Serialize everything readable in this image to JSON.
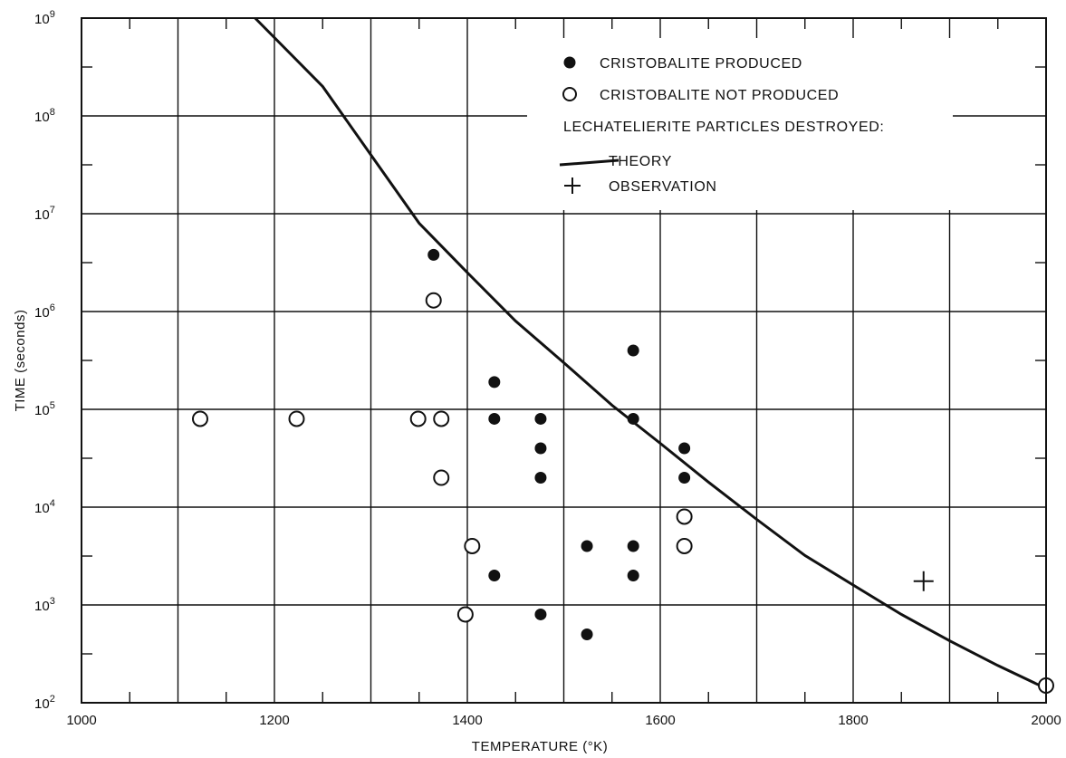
{
  "chart_data": {
    "type": "scatter",
    "xlabel": "TEMPERATURE (°K)",
    "ylabel": "TIME (seconds)",
    "xlim": [
      1000,
      2000
    ],
    "ylim_log10": [
      2,
      9
    ],
    "x_scale": "linear",
    "y_scale": "log",
    "grid": true,
    "x_ticks": [
      1000,
      1200,
      1400,
      1600,
      1800,
      2000
    ],
    "y_ticks": [
      {
        "base": "10",
        "exp": "2"
      },
      {
        "base": "10",
        "exp": "3"
      },
      {
        "base": "10",
        "exp": "4"
      },
      {
        "base": "10",
        "exp": "5"
      },
      {
        "base": "10",
        "exp": "6"
      },
      {
        "base": "10",
        "exp": "7"
      },
      {
        "base": "10",
        "exp": "8"
      },
      {
        "base": "10",
        "exp": "9"
      }
    ],
    "legend": {
      "placement": "top-right",
      "produced": "CRISTOBALITE PRODUCED",
      "not_produced": "CRISTOBALITE NOT PRODUCED",
      "destroyed_header": "LECHATELIERITE PARTICLES DESTROYED:",
      "theory": "THEORY",
      "observation": "OBSERVATION"
    },
    "series": [
      {
        "name": "CRISTOBALITE PRODUCED",
        "marker": "filled-circle",
        "points": [
          {
            "x": 1365,
            "y": 3800000
          },
          {
            "x": 1428,
            "y": 190000
          },
          {
            "x": 1428,
            "y": 80000
          },
          {
            "x": 1428,
            "y": 2000
          },
          {
            "x": 1476,
            "y": 80000
          },
          {
            "x": 1476,
            "y": 40000
          },
          {
            "x": 1476,
            "y": 20000
          },
          {
            "x": 1476,
            "y": 800
          },
          {
            "x": 1524,
            "y": 4000
          },
          {
            "x": 1524,
            "y": 500
          },
          {
            "x": 1572,
            "y": 400000
          },
          {
            "x": 1572,
            "y": 80000
          },
          {
            "x": 1572,
            "y": 4000
          },
          {
            "x": 1572,
            "y": 2000
          },
          {
            "x": 1625,
            "y": 40000
          },
          {
            "x": 1625,
            "y": 20000
          }
        ]
      },
      {
        "name": "CRISTOBALITE NOT PRODUCED",
        "marker": "open-circle",
        "points": [
          {
            "x": 1123,
            "y": 80000
          },
          {
            "x": 1223,
            "y": 80000
          },
          {
            "x": 1349,
            "y": 80000
          },
          {
            "x": 1365,
            "y": 1300000
          },
          {
            "x": 1373,
            "y": 80000
          },
          {
            "x": 1373,
            "y": 20000
          },
          {
            "x": 1398,
            "y": 800
          },
          {
            "x": 1405,
            "y": 4000
          },
          {
            "x": 1625,
            "y": 8000
          },
          {
            "x": 1625,
            "y": 4000
          },
          {
            "x": 2000,
            "y": 150
          }
        ]
      },
      {
        "name": "THEORY",
        "marker": "line",
        "points": [
          {
            "x": 1180,
            "y": 1000000000
          },
          {
            "x": 1250,
            "y": 200000000
          },
          {
            "x": 1300,
            "y": 40000000
          },
          {
            "x": 1350,
            "y": 8000000
          },
          {
            "x": 1400,
            "y": 2500000
          },
          {
            "x": 1450,
            "y": 800000
          },
          {
            "x": 1500,
            "y": 300000
          },
          {
            "x": 1550,
            "y": 110000
          },
          {
            "x": 1600,
            "y": 45000
          },
          {
            "x": 1650,
            "y": 18000
          },
          {
            "x": 1700,
            "y": 7500
          },
          {
            "x": 1750,
            "y": 3200
          },
          {
            "x": 1800,
            "y": 1600
          },
          {
            "x": 1850,
            "y": 800
          },
          {
            "x": 1900,
            "y": 430
          },
          {
            "x": 1950,
            "y": 240
          },
          {
            "x": 2000,
            "y": 140
          }
        ]
      },
      {
        "name": "OBSERVATION",
        "marker": "plus",
        "points": [
          {
            "x": 1873,
            "y": 1750
          }
        ]
      }
    ]
  }
}
